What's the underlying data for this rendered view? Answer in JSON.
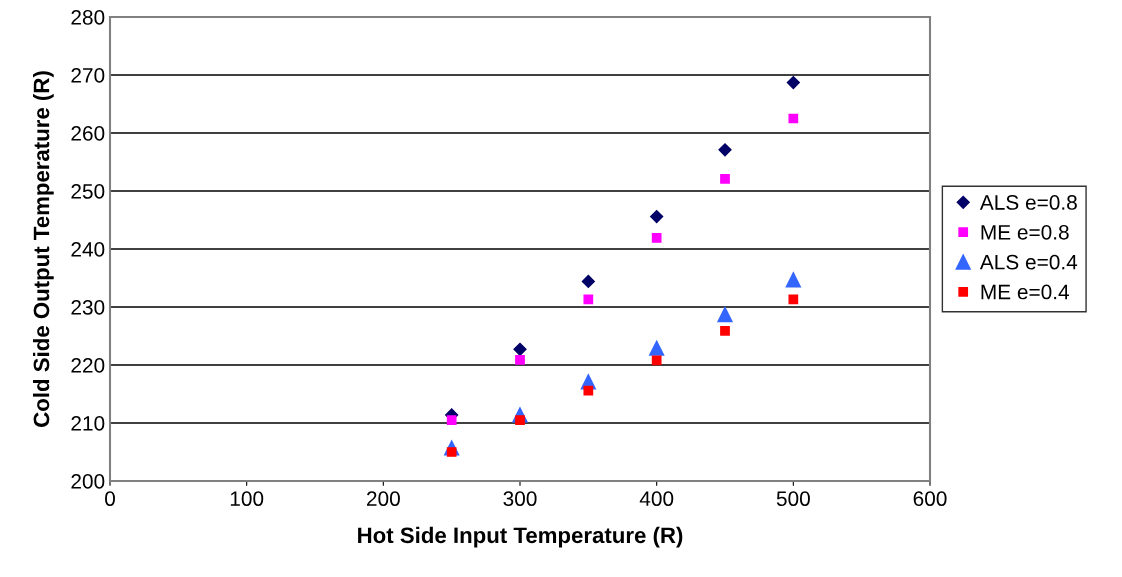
{
  "chart_data": {
    "type": "scatter",
    "xlabel": "Hot Side Input Temperature (R)",
    "ylabel": "Cold Side Output Temperature (R)",
    "x": [
      250,
      300,
      350,
      400,
      450,
      500
    ],
    "series": [
      {
        "name": "ALS e=0.8",
        "color": "#000066",
        "marker": "diamond",
        "values": [
          211.4,
          222.7,
          234.4,
          245.6,
          257.1,
          268.7
        ]
      },
      {
        "name": "ME e=0.8",
        "color": "#ff00ff",
        "marker": "square",
        "values": [
          210.5,
          220.9,
          231.3,
          241.9,
          252.1,
          262.5
        ]
      },
      {
        "name": "ALS e=0.4",
        "color": "#3366ff",
        "marker": "triangle",
        "values": [
          205.7,
          211.4,
          217.1,
          222.9,
          228.7,
          234.7
        ]
      },
      {
        "name": "ME e=0.4",
        "color": "#ff0000",
        "marker": "square",
        "values": [
          205.0,
          210.5,
          215.6,
          220.8,
          225.9,
          231.3
        ]
      }
    ],
    "xlim": [
      0,
      600
    ],
    "xticks": [
      0,
      100,
      200,
      300,
      400,
      500,
      600
    ],
    "ylim": [
      200,
      280
    ],
    "yticks": [
      200,
      210,
      220,
      230,
      240,
      250,
      260,
      270,
      280
    ],
    "grid": "y",
    "legend": "right"
  }
}
